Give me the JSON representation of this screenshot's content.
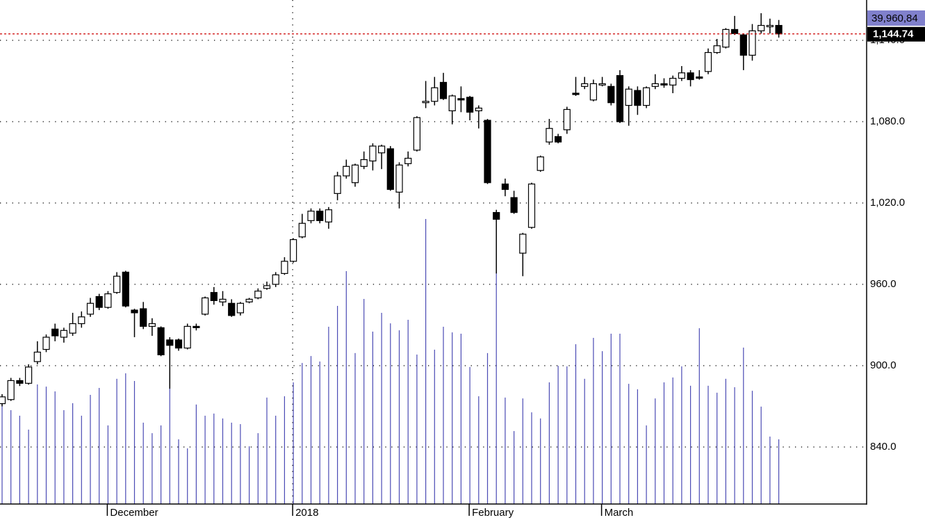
{
  "chart_data": {
    "type": "candlestick",
    "categories": [
      null,
      null,
      null,
      null,
      null,
      null,
      null,
      null,
      null,
      null,
      null,
      null,
      "December",
      null,
      null,
      null,
      null,
      null,
      null,
      null,
      null,
      null,
      null,
      null,
      null,
      null,
      null,
      null,
      null,
      null,
      null,
      null,
      null,
      "2018",
      null,
      null,
      null,
      null,
      null,
      null,
      null,
      null,
      null,
      null,
      null,
      null,
      null,
      null,
      null,
      null,
      null,
      null,
      null,
      "February",
      null,
      null,
      null,
      null,
      null,
      null,
      null,
      null,
      null,
      null,
      null,
      null,
      null,
      null,
      "March",
      null,
      null,
      null,
      null,
      null,
      null,
      null,
      null,
      null,
      null,
      null,
      null,
      null,
      null,
      null,
      null,
      null,
      null,
      null,
      null
    ],
    "open": [
      872,
      875,
      889,
      887,
      903,
      912,
      927,
      921,
      924,
      931,
      938,
      951,
      943,
      954,
      969,
      941,
      942,
      929,
      928,
      919,
      919,
      913,
      929,
      938,
      954,
      947,
      946,
      939,
      947,
      950,
      957,
      960,
      968,
      977,
      995,
      1007,
      1014,
      1006,
      1027,
      1040,
      1035,
      1047,
      1051,
      1057,
      1060,
      1028,
      1049,
      1059,
      1094,
      1095,
      1109,
      1088,
      1097,
      1098,
      1088,
      1081,
      1013,
      1034,
      1024,
      983,
      1002,
      1044,
      1065,
      1069,
      1074,
      1101,
      1106,
      1096,
      1107,
      1106,
      1114,
      1092,
      1103,
      1092,
      1106,
      1108,
      1107,
      1112,
      1116,
      1113,
      1117,
      1131,
      1135,
      1148,
      1144,
      1129,
      1147,
      1150,
      1151
    ],
    "high": [
      879,
      891,
      891,
      901,
      918,
      923,
      931,
      928,
      939,
      940,
      950,
      953,
      955,
      969,
      970,
      942,
      947,
      935,
      929,
      921,
      920,
      931,
      931,
      951,
      958,
      955,
      949,
      947,
      950,
      957,
      962,
      969,
      980,
      994,
      1012,
      1016,
      1016,
      1017,
      1043,
      1052,
      1049,
      1058,
      1064,
      1063,
      1062,
      1050,
      1058,
      1084,
      1110,
      1113,
      1116,
      1100,
      1106,
      1099,
      1092,
      1082,
      1015,
      1038,
      1029,
      998,
      1035,
      1055,
      1082,
      1071,
      1091,
      1113,
      1113,
      1111,
      1113,
      1108,
      1118,
      1106,
      1106,
      1106,
      1115,
      1112,
      1114,
      1121,
      1118,
      1118,
      1134,
      1141,
      1149,
      1158,
      1145,
      1152,
      1160,
      1156,
      1155
    ],
    "low": [
      870,
      874,
      885,
      886,
      901,
      910,
      918,
      917,
      922,
      928,
      936,
      941,
      942,
      953,
      943,
      921,
      927,
      922,
      907,
      883,
      911,
      912,
      926,
      937,
      945,
      944,
      936,
      937,
      946,
      949,
      956,
      958,
      967,
      976,
      994,
      1005,
      1005,
      1001,
      1022,
      1038,
      1032,
      1045,
      1044,
      1045,
      1029,
      1016,
      1047,
      1058,
      1090,
      1092,
      1096,
      1078,
      1087,
      1081,
      1075,
      1034,
      968,
      1025,
      1012,
      966,
      1001,
      1043,
      1063,
      1064,
      1071,
      1099,
      1104,
      1095,
      1106,
      1092,
      1079,
      1077,
      1085,
      1090,
      1104,
      1105,
      1101,
      1110,
      1106,
      1111,
      1115,
      1130,
      1134,
      1144,
      1118,
      1125,
      1145,
      1145,
      1142
    ],
    "close": [
      877,
      889,
      887,
      899,
      910,
      921,
      922,
      926,
      931,
      936,
      946,
      943,
      953,
      966,
      944,
      939,
      929,
      931,
      908,
      915,
      913,
      929,
      928,
      950,
      948,
      949,
      937,
      946,
      949,
      955,
      959,
      967,
      977,
      993,
      1005,
      1014,
      1007,
      1015,
      1040,
      1047,
      1048,
      1052,
      1062,
      1062,
      1030,
      1048,
      1053,
      1083,
      1095,
      1105,
      1097,
      1099,
      1096,
      1087,
      1090,
      1035,
      1008,
      1030,
      1013,
      997,
      1034,
      1054,
      1075,
      1065,
      1089,
      1100,
      1108,
      1108,
      1108,
      1094,
      1080,
      1104,
      1092,
      1105,
      1108,
      1107,
      1112,
      1116,
      1111,
      1112,
      1131,
      1136,
      1148,
      1145,
      1129,
      1147,
      1151,
      1151,
      1144.74
    ],
    "volume": {
      "axis": "y2",
      "color": "#4a4ab4",
      "values": [
        62,
        58.0,
        54.6,
        46.0,
        73.9,
        72.6,
        69.6,
        58.0,
        62.3,
        54.6,
        67.5,
        71.8,
        48.6,
        77.4,
        80.8,
        76.1,
        50.3,
        43.8,
        48.6,
        81.7,
        40.0,
        34.4,
        61.5,
        54.6,
        55.9,
        52.9,
        50.3,
        49.4,
        35.7,
        43.8,
        65.8,
        54.6,
        66.6,
        75.2,
        87.2,
        91.5,
        88.1,
        109.6,
        122.5,
        144.0,
        93.3,
        126.8,
        106.6,
        118.2,
        111.7,
        107.4,
        113.9,
        92.4,
        176.2,
        95.4,
        109.6,
        106.1,
        105.3,
        84.7,
        66.6,
        93.3,
        144.0,
        65.8,
        45.1,
        65.3,
        56.7,
        52.9,
        75.2,
        85.5,
        85.1,
        98.8,
        77.4,
        102.7,
        94.5,
        105.3,
        105.3,
        74.3,
        70.9,
        48.6,
        65.3,
        75.2,
        78.2,
        85.1,
        73.1,
        108.7,
        73.1,
        68.8,
        77.4,
        72.2,
        96.7,
        70.0,
        60.2,
        41.7,
        40.0
      ]
    },
    "ylim": [
      797.95,
      1169.74
    ],
    "yticks": [
      {
        "value": 840,
        "label": "840.0"
      },
      {
        "value": 900,
        "label": "900.0"
      },
      {
        "value": 960,
        "label": "960.0"
      },
      {
        "value": 1020,
        "label": "1,020.0"
      },
      {
        "value": 1080,
        "label": "1,080.0"
      },
      {
        "value": 1140,
        "label": "1,140.0"
      }
    ],
    "y2lim": [
      0,
      311.6
    ],
    "grid": true,
    "colors": {
      "up": "#ffffff",
      "down": "#000000",
      "outline": "#000000",
      "last_price_line": "#cc0000",
      "last_price_box": "#000000",
      "volume_box": "#8080cc"
    },
    "last_price_label": "1,144.74",
    "last_volume_label": "39,960,84"
  }
}
